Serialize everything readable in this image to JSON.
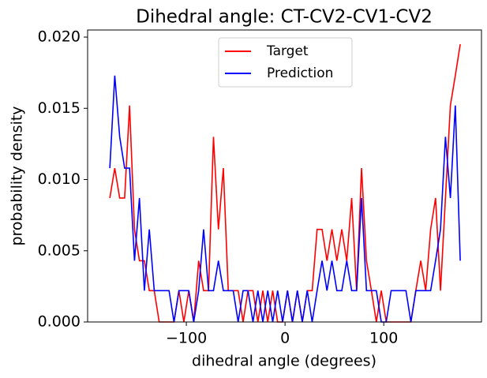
{
  "chart_data": {
    "type": "line",
    "title": "Dihedral angle: CT-CV2-CV1-CV2",
    "xlabel": "dihedral angle (degrees)",
    "ylabel": "probability density",
    "x": [
      -177.5,
      -172.5,
      -167.5,
      -162.5,
      -157.5,
      -152.5,
      -147.5,
      -142.5,
      -137.5,
      -132.5,
      -127.5,
      -122.5,
      -117.5,
      -112.5,
      -107.5,
      -102.5,
      -97.5,
      -92.5,
      -87.5,
      -82.5,
      -77.5,
      -72.5,
      -67.5,
      -62.5,
      -57.5,
      -52.5,
      -47.5,
      -42.5,
      -37.5,
      -32.5,
      -27.5,
      -22.5,
      -17.5,
      -12.5,
      -7.5,
      -2.5,
      2.5,
      7.5,
      12.5,
      17.5,
      22.5,
      27.5,
      32.5,
      37.5,
      42.5,
      47.5,
      52.5,
      57.5,
      62.5,
      67.5,
      72.5,
      77.5,
      82.5,
      87.5,
      92.5,
      97.5,
      102.5,
      107.5,
      112.5,
      117.5,
      122.5,
      127.5,
      132.5,
      137.5,
      142.5,
      147.5,
      152.5,
      157.5,
      162.5,
      167.5,
      172.5,
      177.5
    ],
    "series": [
      {
        "name": "Target",
        "color": "#ff0000",
        "values": [
          0.0087,
          0.0108,
          0.0087,
          0.0087,
          0.0152,
          0.0065,
          0.0043,
          0.0043,
          0.0022,
          0.0022,
          0,
          0,
          0,
          0,
          0.0022,
          0,
          0.0022,
          0,
          0.0043,
          0.0022,
          0.0022,
          0.013,
          0.0065,
          0.0108,
          0.0022,
          0.0022,
          0.0022,
          0,
          0.0022,
          0.0022,
          0,
          0.0022,
          0,
          0.0022,
          0,
          0,
          0.0022,
          0,
          0.0022,
          0,
          0.0022,
          0.0022,
          0.0065,
          0.0065,
          0.0043,
          0.0065,
          0.0043,
          0.0065,
          0.0043,
          0.0087,
          0.0022,
          0.0108,
          0.0043,
          0.0022,
          0,
          0.0022,
          0,
          0,
          0,
          0,
          0,
          0,
          0.0022,
          0.0043,
          0.0022,
          0.0065,
          0.0087,
          0.0022,
          0.0087,
          0.0152,
          0.0173,
          0.0195
        ]
      },
      {
        "name": "Prediction",
        "color": "#0000ff",
        "values": [
          0.0108,
          0.0173,
          0.013,
          0.0108,
          0.0108,
          0.0043,
          0.0087,
          0.0022,
          0.0065,
          0.0022,
          0.0022,
          0.0022,
          0.0022,
          0,
          0.0022,
          0.0022,
          0.0022,
          0,
          0.0022,
          0.0065,
          0.0022,
          0.0022,
          0.0043,
          0.0022,
          0.0022,
          0.0022,
          0,
          0.0022,
          0.0022,
          0,
          0.0022,
          0,
          0.0022,
          0,
          0.0022,
          0,
          0.0022,
          0,
          0.0022,
          0,
          0.0022,
          0,
          0.0022,
          0.0043,
          0.0022,
          0.0043,
          0.0022,
          0.0022,
          0.0043,
          0.0022,
          0.0022,
          0.0087,
          0.0022,
          0.0022,
          0.0022,
          0,
          0,
          0.0022,
          0.0022,
          0.0022,
          0.0022,
          0,
          0.0022,
          0.0022,
          0.0022,
          0.0022,
          0.0043,
          0.0065,
          0.013,
          0.0087,
          0.0152,
          0.0043
        ]
      }
    ],
    "xlim": [
      -200,
      199
    ],
    "ylim": [
      0,
      0.0205
    ],
    "xticks": [
      {
        "value": -100,
        "label": "−100"
      },
      0,
      100
    ],
    "yticks": [
      {
        "value": 0,
        "label": "0.000"
      },
      0.005,
      {
        "value": 0.01,
        "label": "0.010"
      },
      0.015,
      {
        "value": 0.02,
        "label": "0.020"
      }
    ],
    "legend": "upper center",
    "grid": false
  }
}
